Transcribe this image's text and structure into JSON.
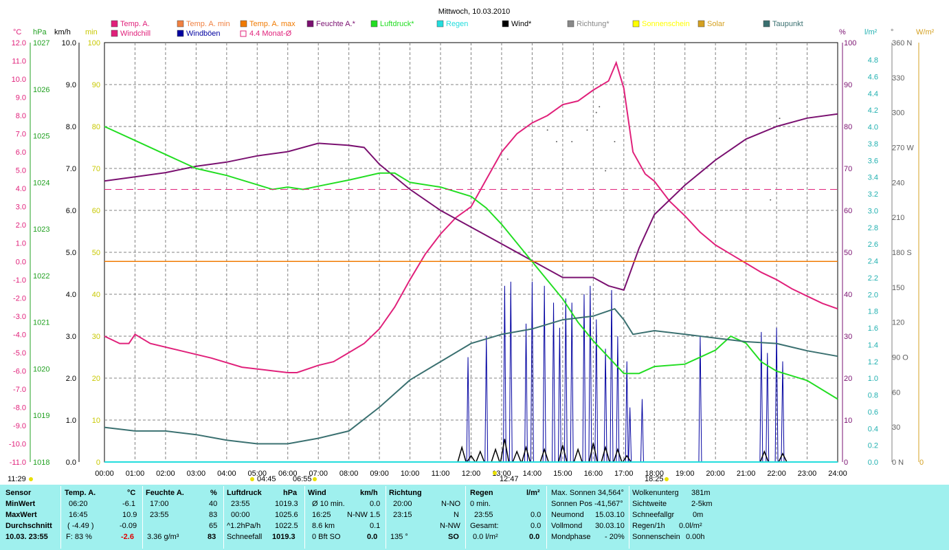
{
  "title": "Mittwoch, 10.03.2010",
  "legend": [
    {
      "label": "Temp. A.",
      "color": "#e0207a"
    },
    {
      "label": "Temp. A. min",
      "color": "#f08040"
    },
    {
      "label": "Temp. A. max",
      "color": "#f07a00"
    },
    {
      "label": "Feuchte A.*",
      "color": "#7a1070"
    },
    {
      "label": "Luftdruck*",
      "color": "#22dd22"
    },
    {
      "label": "Regen",
      "color": "#22dddd"
    },
    {
      "label": "Wind*",
      "color": "#000000"
    },
    {
      "label": "Richtung*",
      "color": "#888888"
    },
    {
      "label": "Sonnenschein",
      "color": "#ffff00"
    },
    {
      "label": "Solar",
      "color": "#d4a020"
    },
    {
      "label": "Taupunkt",
      "color": "#3a7070"
    },
    {
      "label": "Windchill",
      "color": "#e0207a"
    },
    {
      "label": "Windböen",
      "color": "#0000a0"
    },
    {
      "label": "4.4 Monat-Ø",
      "color": "#e0207a"
    }
  ],
  "axis_units": {
    "temp": "°C",
    "press": "hPa",
    "wind": "km/h",
    "min": "min",
    "hum": "%",
    "rain": "l/m²",
    "dir": "°",
    "solar": "W/m²"
  },
  "axes": {
    "temp": [
      "12.0",
      "11.0",
      "10.0",
      "9.0",
      "8.0",
      "7.0",
      "6.0",
      "5.0",
      "4.0",
      "3.0",
      "2.0",
      "1.0",
      "0.0",
      "-1.0",
      "-2.0",
      "-3.0",
      "-4.0",
      "-5.0",
      "-6.0",
      "-7.0",
      "-8.0",
      "-9.0",
      "-10.0",
      "-11.0"
    ],
    "press": [
      "1027",
      "1026",
      "1025",
      "1024",
      "1023",
      "1022",
      "1021",
      "1020",
      "1019",
      "1018"
    ],
    "wind": [
      "10.0",
      "9.0",
      "8.0",
      "7.0",
      "6.0",
      "5.0",
      "4.0",
      "3.0",
      "2.0",
      "1.0",
      "0.0"
    ],
    "min": [
      "100",
      "90",
      "80",
      "70",
      "60",
      "50",
      "40",
      "30",
      "20",
      "10",
      "0"
    ],
    "hum": [
      "100",
      "90",
      "80",
      "70",
      "60",
      "50",
      "40",
      "30",
      "20",
      "10",
      "0"
    ],
    "rain": [
      "4.8",
      "4.6",
      "4.4",
      "4.2",
      "4.0",
      "3.8",
      "3.6",
      "3.4",
      "3.2",
      "3.0",
      "2.8",
      "2.6",
      "2.4",
      "2.2",
      "2.0",
      "1.8",
      "1.6",
      "1.4",
      "1.2",
      "1.0",
      "0.8",
      "0.6",
      "0.4",
      "0.2",
      "0.0"
    ],
    "dir": [
      "360 N",
      "330",
      "300",
      "270 W",
      "240",
      "210",
      "180 S",
      "150",
      "120",
      "90 O",
      "60",
      "30",
      "0 N"
    ],
    "solar": [
      "0"
    ]
  },
  "time_labels": [
    "00:00",
    "01:00",
    "02:00",
    "03:00",
    "04:00",
    "05:00",
    "06:00",
    "07:00",
    "08:00",
    "09:00",
    "10:00",
    "11:00",
    "12:00",
    "13:00",
    "14:00",
    "15:00",
    "16:00",
    "17:00",
    "18:00",
    "19:00",
    "20:00",
    "21:00",
    "22:00",
    "23:00",
    "24:00"
  ],
  "markers": {
    "moonrise": "04:45",
    "sunrise": "06:55",
    "noon": "12:47",
    "sunset": "18:25",
    "moonset": "11:29"
  },
  "chart_data": {
    "type": "line",
    "title": "Mittwoch, 10.03.2010",
    "x_unit": "hours",
    "xlim": [
      0,
      24
    ],
    "series": [
      {
        "name": "Temp. A.",
        "unit": "°C",
        "color": "#e0207a",
        "points": [
          [
            0,
            -4.1
          ],
          [
            0.5,
            -4.5
          ],
          [
            0.8,
            -4.5
          ],
          [
            1.0,
            -4.0
          ],
          [
            1.5,
            -4.5
          ],
          [
            2.5,
            -4.9
          ],
          [
            3.5,
            -5.3
          ],
          [
            4.5,
            -5.8
          ],
          [
            5.5,
            -6.0
          ],
          [
            6.0,
            -6.1
          ],
          [
            6.3,
            -6.1
          ],
          [
            7.0,
            -5.7
          ],
          [
            7.5,
            -5.5
          ],
          [
            8.0,
            -5.0
          ],
          [
            8.5,
            -4.5
          ],
          [
            9.0,
            -3.7
          ],
          [
            9.5,
            -2.5
          ],
          [
            10.0,
            -1.0
          ],
          [
            10.5,
            0.4
          ],
          [
            11.0,
            1.5
          ],
          [
            11.5,
            2.4
          ],
          [
            12.0,
            3.0
          ],
          [
            12.5,
            4.5
          ],
          [
            13.0,
            6.0
          ],
          [
            13.5,
            7.0
          ],
          [
            14.0,
            7.6
          ],
          [
            14.5,
            8.0
          ],
          [
            15.0,
            8.6
          ],
          [
            15.5,
            8.8
          ],
          [
            16.0,
            9.4
          ],
          [
            16.5,
            9.9
          ],
          [
            16.75,
            10.9
          ],
          [
            17.0,
            9.5
          ],
          [
            17.3,
            6.0
          ],
          [
            17.7,
            4.8
          ],
          [
            18.0,
            4.4
          ],
          [
            18.5,
            3.3
          ],
          [
            19.0,
            2.5
          ],
          [
            19.5,
            1.6
          ],
          [
            20.0,
            0.9
          ],
          [
            20.5,
            0.4
          ],
          [
            21.0,
            -0.1
          ],
          [
            21.5,
            -0.6
          ],
          [
            22.0,
            -1.0
          ],
          [
            22.5,
            -1.5
          ],
          [
            23.0,
            -1.9
          ],
          [
            23.5,
            -2.3
          ],
          [
            24.0,
            -2.6
          ]
        ]
      },
      {
        "name": "Feuchte A.*",
        "unit": "%",
        "color": "#7a1070",
        "points": [
          [
            0,
            67
          ],
          [
            1,
            68
          ],
          [
            2,
            69
          ],
          [
            3,
            70.5
          ],
          [
            4,
            71.5
          ],
          [
            5,
            73
          ],
          [
            6,
            74
          ],
          [
            7,
            76
          ],
          [
            8,
            75.5
          ],
          [
            8.5,
            75
          ],
          [
            9,
            71
          ],
          [
            10,
            65
          ],
          [
            11,
            60
          ],
          [
            12,
            56
          ],
          [
            13,
            52
          ],
          [
            14,
            48
          ],
          [
            15,
            44
          ],
          [
            16,
            44
          ],
          [
            16.5,
            42
          ],
          [
            17.0,
            41
          ],
          [
            17.5,
            51
          ],
          [
            18,
            59
          ],
          [
            19,
            66
          ],
          [
            20,
            72
          ],
          [
            21,
            77
          ],
          [
            22,
            80
          ],
          [
            23,
            82
          ],
          [
            24,
            83
          ]
        ]
      },
      {
        "name": "Luftdruck*",
        "unit": "hPa",
        "color": "#22dd22",
        "points": [
          [
            0,
            1025.2
          ],
          [
            1,
            1024.9
          ],
          [
            2,
            1024.6
          ],
          [
            3,
            1024.3
          ],
          [
            4,
            1024.15
          ],
          [
            5,
            1023.95
          ],
          [
            5.5,
            1023.85
          ],
          [
            6,
            1023.9
          ],
          [
            6.5,
            1023.85
          ],
          [
            7,
            1023.92
          ],
          [
            8,
            1024.05
          ],
          [
            9,
            1024.2
          ],
          [
            9.5,
            1024.2
          ],
          [
            10,
            1024.0
          ],
          [
            11,
            1023.9
          ],
          [
            12,
            1023.7
          ],
          [
            12.5,
            1023.45
          ],
          [
            13,
            1023.1
          ],
          [
            14,
            1022.3
          ],
          [
            15,
            1021.5
          ],
          [
            15.5,
            1021.0
          ],
          [
            16,
            1020.6
          ],
          [
            17,
            1019.9
          ],
          [
            17.5,
            1019.9
          ],
          [
            18,
            1020.05
          ],
          [
            19,
            1020.1
          ],
          [
            20,
            1020.4
          ],
          [
            20.5,
            1020.7
          ],
          [
            21,
            1020.55
          ],
          [
            21.5,
            1020.15
          ],
          [
            22,
            1019.95
          ],
          [
            23,
            1019.75
          ],
          [
            24,
            1019.35
          ]
        ]
      },
      {
        "name": "Taupunkt",
        "unit": "°C",
        "color": "#3a7070",
        "points": [
          [
            0,
            -9.1
          ],
          [
            1,
            -9.3
          ],
          [
            2,
            -9.3
          ],
          [
            3,
            -9.5
          ],
          [
            4,
            -9.8
          ],
          [
            5,
            -10.0
          ],
          [
            6,
            -10.0
          ],
          [
            7,
            -9.7
          ],
          [
            8,
            -9.3
          ],
          [
            9,
            -8.0
          ],
          [
            10,
            -6.5
          ],
          [
            11,
            -5.5
          ],
          [
            12,
            -4.5
          ],
          [
            13,
            -4.0
          ],
          [
            14,
            -3.7
          ],
          [
            15,
            -3.2
          ],
          [
            16,
            -3.0
          ],
          [
            16.7,
            -2.6
          ],
          [
            17.0,
            -3.2
          ],
          [
            17.3,
            -4.0
          ],
          [
            18,
            -3.8
          ],
          [
            19,
            -4.0
          ],
          [
            20,
            -4.2
          ],
          [
            21,
            -4.4
          ],
          [
            22,
            -4.5
          ],
          [
            23,
            -4.9
          ],
          [
            24,
            -5.2
          ]
        ]
      },
      {
        "name": "Temp. A. max",
        "unit": "°C",
        "color": "#f07a00",
        "points": [
          [
            0,
            0.0
          ],
          [
            24,
            0.0
          ]
        ]
      },
      {
        "name": "4.4 Monat-Ø",
        "unit": "hPa",
        "color": "#e0207a",
        "points": [
          [
            0,
            1023.85
          ],
          [
            24,
            1023.85
          ]
        ]
      },
      {
        "name": "Regen",
        "unit": "l/m²",
        "color": "#22dddd",
        "points": [
          [
            0,
            0.0
          ],
          [
            24,
            0.0
          ]
        ]
      }
    ],
    "windboeen_bars": [
      [
        11.9,
        2.5
      ],
      [
        12.5,
        3.0
      ],
      [
        13.1,
        4.2
      ],
      [
        13.3,
        4.3
      ],
      [
        13.8,
        3.3
      ],
      [
        14.0,
        4.3
      ],
      [
        14.4,
        4.2
      ],
      [
        14.7,
        3.8
      ],
      [
        14.9,
        3.2
      ],
      [
        15.1,
        3.9
      ],
      [
        15.3,
        3.8
      ],
      [
        15.7,
        4.0
      ],
      [
        15.9,
        4.2
      ],
      [
        16.1,
        3.4
      ],
      [
        16.4,
        2.7
      ],
      [
        16.6,
        4.1
      ],
      [
        16.8,
        3.0
      ],
      [
        17.1,
        2.4
      ],
      [
        17.2,
        1.3
      ],
      [
        17.6,
        1.5
      ],
      [
        19.5,
        3.0
      ],
      [
        21.5,
        3.1
      ],
      [
        21.7,
        2.6
      ],
      [
        22.0,
        3.2
      ],
      [
        22.2,
        2.4
      ]
    ],
    "wind_peaks": [
      [
        11.7,
        0.35
      ],
      [
        12.0,
        0.15
      ],
      [
        12.3,
        0.25
      ],
      [
        12.8,
        0.3
      ],
      [
        13.1,
        0.55
      ],
      [
        13.5,
        0.25
      ],
      [
        13.8,
        0.35
      ],
      [
        14.4,
        0.3
      ],
      [
        15.0,
        0.4
      ],
      [
        15.5,
        0.3
      ],
      [
        16.0,
        0.45
      ],
      [
        16.4,
        0.35
      ],
      [
        16.8,
        0.3
      ],
      [
        17.1,
        0.15
      ],
      [
        21.6,
        0.25
      ],
      [
        22.2,
        0.2
      ]
    ],
    "direction_points": [
      [
        13.2,
        260
      ],
      [
        14.5,
        285
      ],
      [
        14.8,
        275
      ],
      [
        15.3,
        275
      ],
      [
        15.8,
        285
      ],
      [
        16.1,
        300
      ],
      [
        16.4,
        250
      ],
      [
        16.7,
        275
      ],
      [
        16.2,
        305
      ],
      [
        22.1,
        295
      ],
      [
        21.8,
        225
      ]
    ]
  },
  "stats": {
    "sensor": {
      "title": "Sensor",
      "rows": [
        "MinWert",
        "MaxWert",
        "Durchschnitt",
        "10.03. 23:55"
      ]
    },
    "temp": {
      "title": "Temp. A.",
      "unit": "°C",
      "r1t": "06:20",
      "r1v": "-6.1",
      "r2t": "16:45",
      "r2v": "10.9",
      "r3t": "( -4.49 )",
      "r3v": "-0.09",
      "r4t": "F: 83 %",
      "r4v": "-2.6"
    },
    "hum": {
      "title": "Feuchte A.",
      "unit": "%",
      "r1t": "17:00",
      "r1v": "40",
      "r2t": "23:55",
      "r2v": "83",
      "r3v": "65",
      "r4t": "3.36 g/m³",
      "r4v": "83"
    },
    "press": {
      "title": "Luftdruck",
      "unit": "hPa",
      "r1t": "23:55",
      "r1v": "1019.3",
      "r2t": "00:00",
      "r2v": "1025.6",
      "r3t": "^1.2hPa/h",
      "r3v": "1022.5",
      "r4t": "Schneefall",
      "r4v": "1019.3"
    },
    "wind": {
      "title": "Wind",
      "unit": "km/h",
      "r1t": "Ø 10 min.",
      "r1v": "0.0",
      "r2t": "16:25",
      "r2m": "N-NW 1.5",
      "r3t": "8.6 km",
      "r3v": "0.1",
      "r4t": "0 Bft SO",
      "r4v": "0.0"
    },
    "dir": {
      "title": "Richtung",
      "r1t": "20:00",
      "r1v": "N-NO",
      "r2t": "23:15",
      "r2v": "N",
      "r3v": "N-NW",
      "r4t": "135 °",
      "r4v": "SO"
    },
    "rain": {
      "title": "Regen",
      "unit": "l/m²",
      "r1t": "0 min.",
      "r2t": "23:55",
      "r2v": "0.0",
      "r3t": "Gesamt:",
      "r3v": "0.0",
      "r4t": "0.0 l/m²",
      "r4v": "0.0"
    },
    "sun": {
      "r1": "Max. Sonnen 34,564°",
      "r2": "Sonnen Pos -41,567°",
      "r3l": "Neumond",
      "r3v": "15.03.10",
      "r4l": "Vollmond",
      "r4v": "30.03.10",
      "r5l": "Mondphase",
      "r5v": "- 20%"
    },
    "misc": {
      "r1l": "Wolkenunterg",
      "r1v": "381m",
      "r2l": "Sichtweite",
      "r2v": "2-5km",
      "r3l": "Schneefallgr",
      "r3v": "0m",
      "r4l": "Regen/1h",
      "r4v": "0.0l/m²",
      "r5l": "Sonnenschein",
      "r5v": "0.00h"
    }
  }
}
